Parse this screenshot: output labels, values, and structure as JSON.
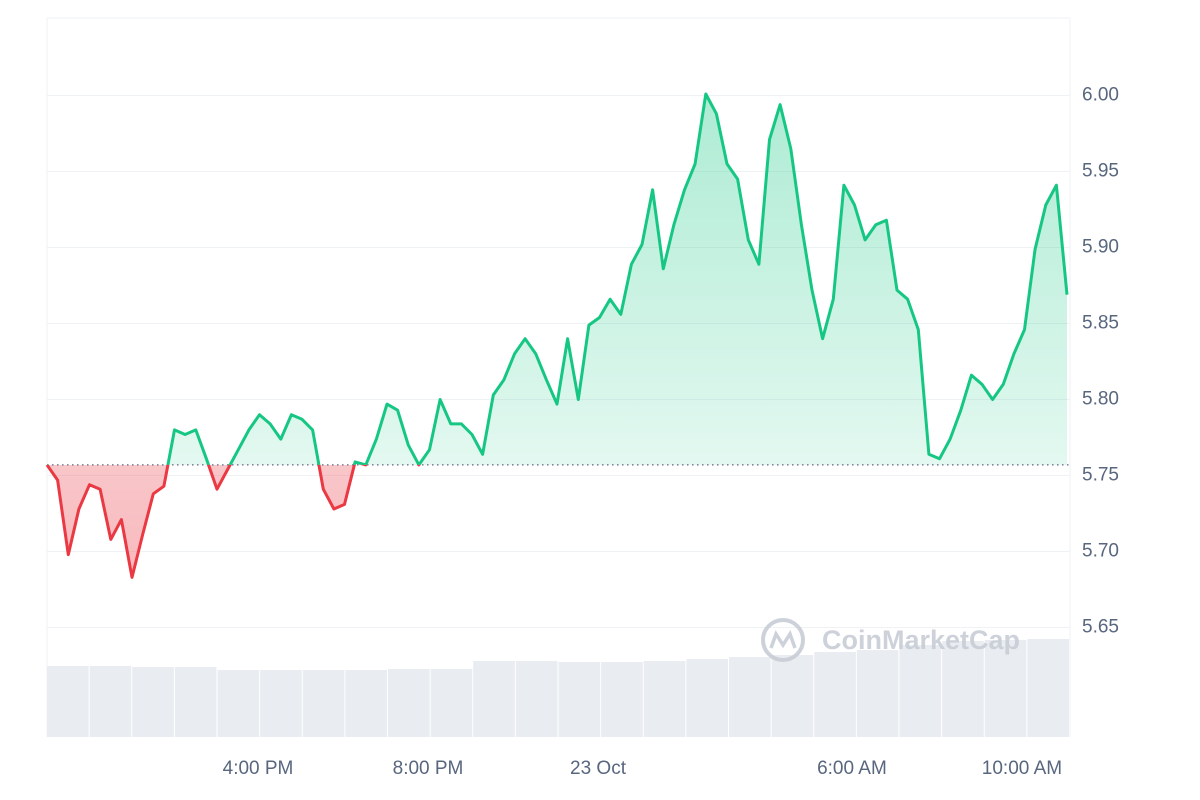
{
  "chart_data": {
    "type": "line",
    "values": [
      5.757,
      5.747,
      5.698,
      5.728,
      5.744,
      5.741,
      5.708,
      5.721,
      5.683,
      5.711,
      5.738,
      5.743,
      5.78,
      5.777,
      5.78,
      5.761,
      5.741,
      5.754,
      5.767,
      5.78,
      5.79,
      5.784,
      5.774,
      5.79,
      5.787,
      5.78,
      5.741,
      5.728,
      5.731,
      5.759,
      5.757,
      5.774,
      5.797,
      5.793,
      5.77,
      5.757,
      5.767,
      5.8,
      5.784,
      5.784,
      5.777,
      5.764,
      5.803,
      5.813,
      5.83,
      5.84,
      5.83,
      5.813,
      5.797,
      5.84,
      5.8,
      5.849,
      5.854,
      5.866,
      5.856,
      5.889,
      5.902,
      5.938,
      5.886,
      5.915,
      5.938,
      5.955,
      6.001,
      5.988,
      5.955,
      5.945,
      5.905,
      5.889,
      5.971,
      5.994,
      5.965,
      5.915,
      5.872,
      5.84,
      5.866,
      5.941,
      5.928,
      5.905,
      5.915,
      5.918,
      5.872,
      5.866,
      5.846,
      5.764,
      5.761,
      5.774,
      5.793,
      5.816,
      5.81,
      5.8,
      5.81,
      5.83,
      5.846,
      5.899,
      5.928,
      5.941,
      5.869
    ],
    "baseline": 5.757,
    "up_color": "#16c784",
    "down_color": "#ea3943",
    "xlim": [
      0,
      96
    ],
    "xticks": [
      {
        "value": 19.86,
        "label": "4:00 PM"
      },
      {
        "value": 35.86,
        "label": "8:00 PM"
      },
      {
        "value": 51.86,
        "label": "23 Oct"
      },
      {
        "value": 75.76,
        "label": "6:00 AM"
      },
      {
        "value": 91.76,
        "label": "10:00 AM"
      }
    ],
    "ylim": [
      5.578,
      6.051
    ],
    "yticks": [
      5.65,
      {
        "value": 5.7,
        "label": "5.70"
      },
      5.75,
      {
        "value": 5.8,
        "label": "5.80"
      },
      5.85,
      {
        "value": 5.9,
        "label": "5.90"
      },
      5.95,
      {
        "value": 6.0,
        "label": "6.00"
      }
    ],
    "grid": true,
    "volume": {
      "values": [
        71,
        71,
        70,
        70,
        67,
        67,
        67,
        67,
        68,
        68,
        76,
        76,
        75,
        75,
        76,
        78,
        80,
        82,
        85,
        87,
        92,
        96,
        97,
        98
      ],
      "lim": [
        0,
        100
      ],
      "color": "#e9ecf1"
    },
    "watermark": "CoinMarketCap"
  }
}
